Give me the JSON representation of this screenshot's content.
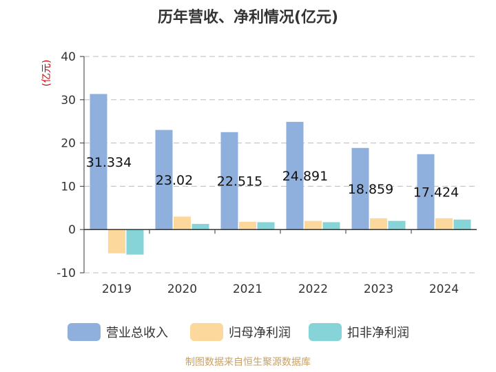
{
  "chart_data": {
    "type": "bar",
    "title": "历年营收、净利情况(亿元)",
    "ylabel": "(亿元)",
    "categories": [
      "2019",
      "2020",
      "2021",
      "2022",
      "2023",
      "2024"
    ],
    "series": [
      {
        "name": "营业总收入",
        "values": [
          31.334,
          23.02,
          22.515,
          24.891,
          18.859,
          17.424
        ],
        "color": "#8fb0dc"
      },
      {
        "name": "归母净利润",
        "values": [
          -5.5,
          3.0,
          1.8,
          2.0,
          2.6,
          2.6
        ],
        "color": "#fdd89c"
      },
      {
        "name": "扣非净利润",
        "values": [
          -5.8,
          1.3,
          1.7,
          1.7,
          2.0,
          2.3
        ],
        "color": "#86d4d7"
      }
    ],
    "data_labels": [
      "31.334",
      "23.02",
      "22.515",
      "24.891",
      "18.859",
      "17.424"
    ],
    "ylim": [
      -10,
      40
    ],
    "yticks": [
      -10,
      0,
      10,
      20,
      30,
      40
    ],
    "grid": true,
    "legend": "bottom",
    "source": "制图数据来自恒生聚源数据库"
  }
}
